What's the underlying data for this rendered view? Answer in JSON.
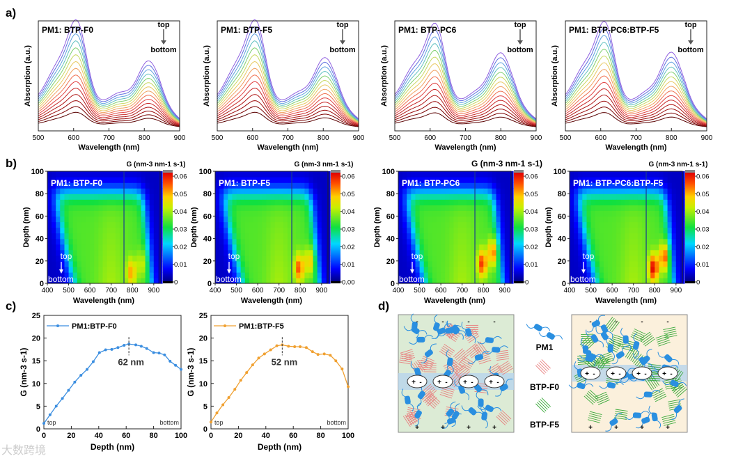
{
  "panel_labels": [
    "a)",
    "b)",
    "c)",
    "d)"
  ],
  "watermark": "大数跨境",
  "chart_data": [
    {
      "type": "line",
      "panel": "a",
      "xlabel": "Wavelength (nm)",
      "ylabel": "Absorption (a.u.)",
      "xlim": [
        500,
        900
      ],
      "xticks": [
        500,
        600,
        700,
        800,
        900
      ],
      "curve_count": 15,
      "curve_order_labels": {
        "top": "top",
        "bottom": "bottom"
      },
      "plots": [
        {
          "title": "PM1: BTP-F0",
          "peak1_nm": 612,
          "peak2_nm": 812,
          "peak2_rel": 0.82
        },
        {
          "title": "PM1: BTP-F5",
          "peak1_nm": 612,
          "peak2_nm": 805,
          "peak2_rel": 0.88
        },
        {
          "title": "PM1: BTP-PC6",
          "peak1_nm": 618,
          "peak2_nm": 800,
          "peak2_rel": 0.97
        },
        {
          "title": "PM1: BTP-PC6:BTP-F5",
          "peak1_nm": 615,
          "peak2_nm": 800,
          "peak2_rel": 0.98
        }
      ]
    },
    {
      "type": "heatmap",
      "panel": "b",
      "xlabel": "Wavelength (nm)",
      "ylabel": "Depth (nm)",
      "colorbar_label": "G (nm-3 nm-1 s-1)",
      "xlim": [
        400,
        930
      ],
      "ylim": [
        0,
        100
      ],
      "xticks": [
        400,
        500,
        600,
        700,
        800,
        900
      ],
      "yticks": [
        0,
        20,
        40,
        60,
        80,
        100
      ],
      "clim": [
        0,
        0.062
      ],
      "arrow_labels": {
        "top": "top",
        "bottom": "bottom"
      },
      "plots": [
        {
          "title": "PM1: BTP-F0",
          "cticks": [
            "0",
            "0.01",
            "0.02",
            "0.03",
            "0.04",
            "0.05",
            "0.06"
          ],
          "hotspots": [
            {
              "wavelength": 795,
              "depth": 10,
              "G": 0.047
            },
            {
              "wavelength": 845,
              "depth": 18,
              "G": 0.04
            }
          ]
        },
        {
          "title": "PM1: BTP-F5",
          "cticks": [
            "0.00",
            "0.01",
            "0.02",
            "0.03",
            "0.04",
            "0.05",
            "0.06"
          ],
          "hotspots": [
            {
              "wavelength": 795,
              "depth": 14,
              "G": 0.052
            },
            {
              "wavelength": 845,
              "depth": 20,
              "G": 0.046
            }
          ]
        },
        {
          "title": "PM1: BTP-PC6",
          "cticks": [
            "0",
            "0.01",
            "0.02",
            "0.03",
            "0.04",
            "0.05",
            "0.06"
          ],
          "hotspots": [
            {
              "wavelength": 795,
              "depth": 18,
              "G": 0.054
            },
            {
              "wavelength": 845,
              "depth": 28,
              "G": 0.052
            }
          ]
        },
        {
          "title": "PM1: BTP-PC6:BTP-F5",
          "cticks": [
            "0",
            "0.01",
            "0.02",
            "0.03",
            "0.04",
            "0.05",
            "0.06"
          ],
          "hotspots": [
            {
              "wavelength": 795,
              "depth": 14,
              "G": 0.058
            },
            {
              "wavelength": 845,
              "depth": 24,
              "G": 0.054
            }
          ]
        }
      ]
    },
    {
      "type": "line",
      "panel": "c",
      "title": "",
      "xlabel": "Depth (nm)",
      "ylabel": "G (nm-3 s-1)",
      "xlim": [
        0,
        100
      ],
      "ylim": [
        0,
        25
      ],
      "xticks": [
        0,
        20,
        40,
        60,
        80,
        100
      ],
      "yticks": [
        0,
        5,
        10,
        15,
        20,
        25
      ],
      "corner_labels": {
        "left": "top",
        "right": "bottom"
      },
      "plots": [
        {
          "name": "PM1:BTP-F0",
          "color": "#3b8ee0",
          "peak_depth": 62,
          "peak_label": "62 nm",
          "x": [
            0,
            4.5,
            9,
            13.5,
            18,
            22.5,
            27,
            31.5,
            36,
            40.5,
            45,
            49.5,
            54,
            58.5,
            62,
            67,
            71,
            75,
            80,
            84,
            88,
            92,
            96,
            100
          ],
          "y": [
            1.2,
            3.1,
            5.0,
            6.7,
            8.5,
            10.3,
            11.8,
            13.1,
            14.8,
            16.8,
            17.4,
            17.5,
            17.9,
            18.4,
            18.7,
            18.5,
            18.2,
            17.7,
            16.8,
            16.7,
            16.3,
            14.9,
            14.0,
            13.1
          ]
        },
        {
          "name": "PM1:BTP-F5",
          "color": "#f0a030",
          "peak_depth": 52,
          "peak_label": "52 nm",
          "x": [
            0,
            4.3,
            8.7,
            13,
            17.4,
            21.7,
            26,
            30.4,
            34.8,
            39,
            43.5,
            48,
            52,
            56.5,
            61,
            65,
            69.5,
            74,
            78,
            82.6,
            87,
            91,
            95.6,
            100
          ],
          "y": [
            1.5,
            3.5,
            5.3,
            6.9,
            8.7,
            10.7,
            12.4,
            14.1,
            15.6,
            16.5,
            17.4,
            18.3,
            18.5,
            18.2,
            18.1,
            18.1,
            17.9,
            17.0,
            16.4,
            16.5,
            16.2,
            15.0,
            13.2,
            9.3
          ]
        }
      ]
    }
  ],
  "schematic": {
    "legend": [
      "PM1",
      "BTP-F0",
      "BTP-F5"
    ],
    "charge_pair": [
      "+",
      "-"
    ],
    "colors": {
      "pm1": "#2a8fe0",
      "f0": "#e88080",
      "f5": "#3aaa3a",
      "left_bg": "#dcebd5",
      "right_bg": "#fbf0dc",
      "band": "#b8d4ec"
    }
  }
}
